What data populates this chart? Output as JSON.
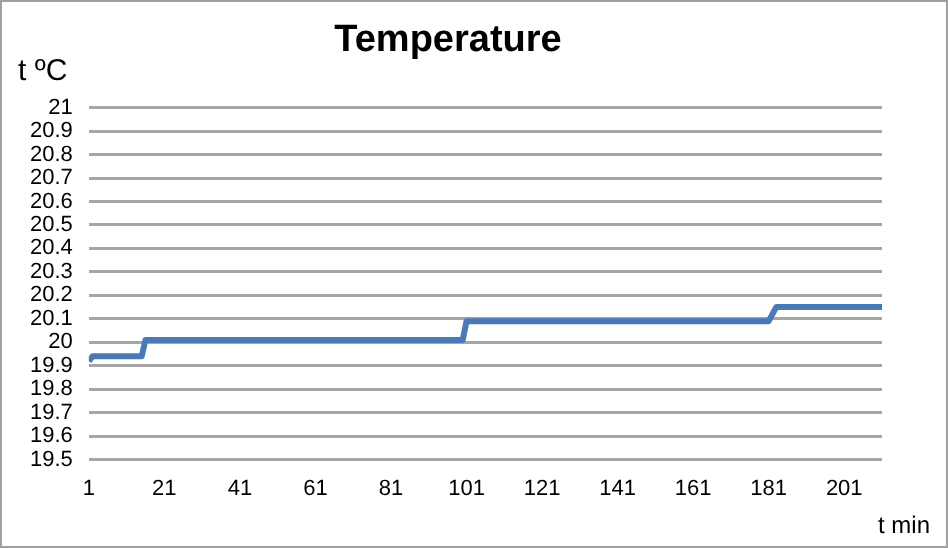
{
  "chart_data": {
    "type": "line",
    "title": "Temperature",
    "xlabel": "t min",
    "ylabel": "t ºC",
    "x": [
      1,
      2,
      15,
      16,
      100,
      101,
      181,
      183,
      211
    ],
    "series": [
      {
        "color": "#4a7ab5",
        "values": [
          19.92,
          19.94,
          19.94,
          20.01,
          20.01,
          20.09,
          20.09,
          20.15,
          20.15
        ]
      }
    ],
    "xlim": [
      1,
      211
    ],
    "xticks": [
      1,
      21,
      41,
      61,
      81,
      101,
      121,
      141,
      161,
      181,
      201
    ],
    "ylim": [
      19.5,
      21
    ],
    "yticks": [
      19.5,
      19.6,
      19.7,
      19.8,
      19.9,
      20,
      20.1,
      20.2,
      20.3,
      20.4,
      20.5,
      20.6,
      20.7,
      20.8,
      20.9,
      21
    ],
    "grid": "y",
    "legend": false,
    "marker": "none",
    "line_style": "solid"
  }
}
